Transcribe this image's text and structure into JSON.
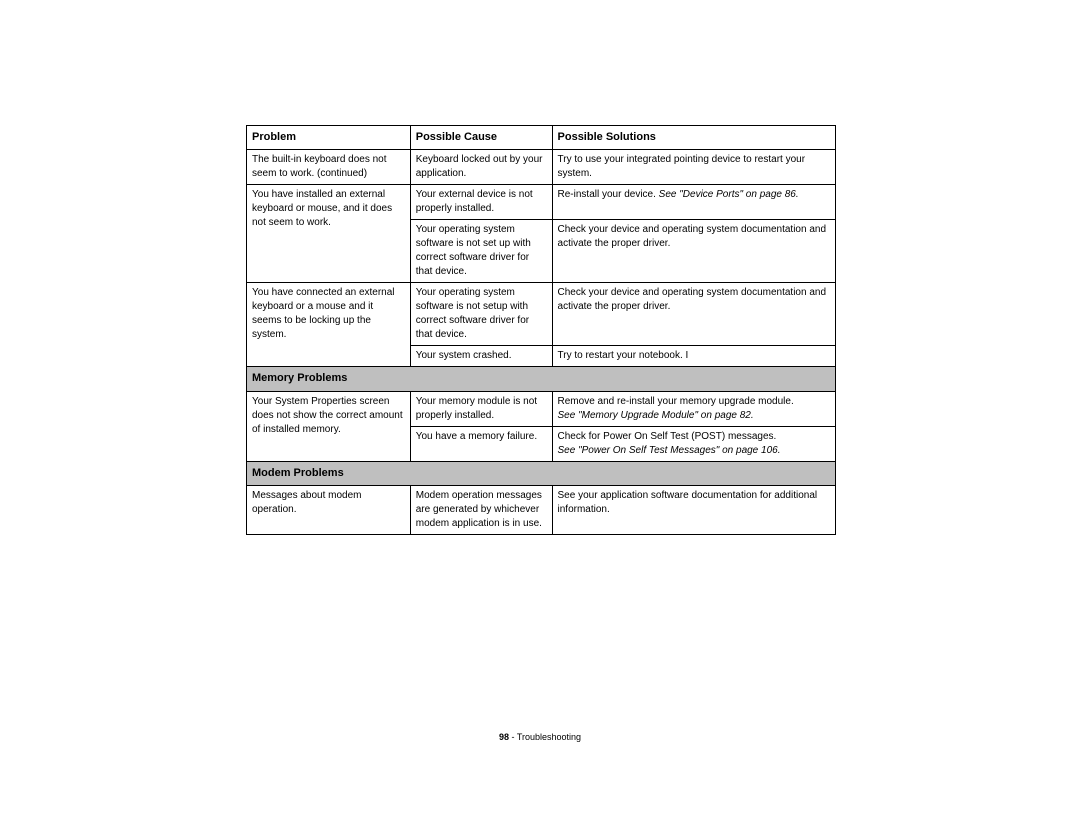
{
  "headers": {
    "problem": "Problem",
    "cause": "Possible Cause",
    "solution": "Possible Solutions"
  },
  "rows": [
    {
      "problem": "The built-in keyboard does not seem to work. (continued)",
      "cause": "Keyboard locked out by your application.",
      "solution": "Try to use your integrated pointing device to restart your system."
    },
    {
      "problem": "You have installed an external keyboard or mouse, and it does not seem to work.",
      "cause": "Your external device is not properly installed.",
      "solution_prefix": "Re-install your device. ",
      "solution_italic": "See \"Device Ports\" on page 86."
    },
    {
      "problem": "",
      "cause": "Your operating system software is not set up with correct software driver for that device.",
      "solution": "Check your device and operating system documentation and activate the proper driver."
    },
    {
      "problem": "You have connected an external keyboard or a mouse and it seems to be locking up the system.",
      "cause": "Your operating system software is not setup with correct software driver for that device.",
      "solution": "Check your device and operating system documentation and activate the proper driver."
    },
    {
      "problem": "",
      "cause": "Your system crashed.",
      "solution": "Try to restart your notebook. I"
    }
  ],
  "section_memory": "Memory Problems",
  "memory_rows": [
    {
      "problem": "Your System Properties screen does not show the correct amount of installed memory.",
      "cause": "Your memory module is not properly installed.",
      "solution_line1": "Remove and re-install your memory upgrade module.",
      "solution_italic": "See \"Memory Upgrade Module\" on page 82."
    },
    {
      "problem": "",
      "cause": "You have a memory failure.",
      "solution_line1": "Check for Power On Self Test (POST) messages.",
      "solution_italic": "See \"Power On Self Test Messages\" on page 106."
    }
  ],
  "section_modem": "Modem Problems",
  "modem_rows": [
    {
      "problem": "Messages about modem operation.",
      "cause": "Modem operation messages are generated by whichever modem application is in use.",
      "solution": "See your application software documentation for additional information."
    }
  ],
  "footer": {
    "page": "98",
    "separator": " - ",
    "title": "Troubleshooting"
  }
}
